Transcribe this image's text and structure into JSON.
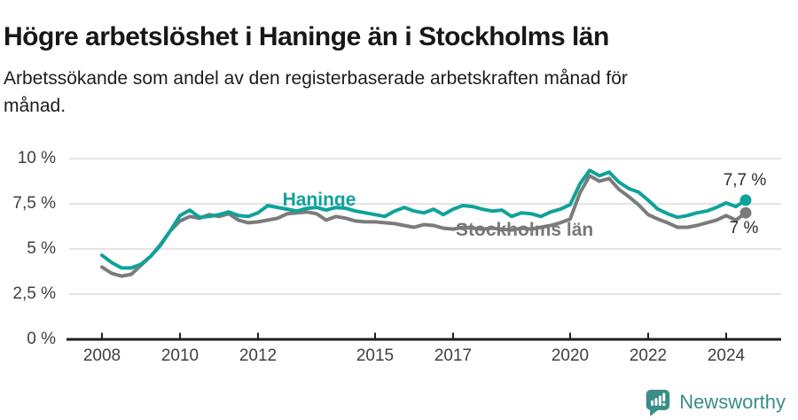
{
  "chart_data": {
    "type": "line",
    "title": "Högre arbetslöshet i Haninge än i Stockholms län",
    "subtitle_lines": [
      "Arbetssökande som andel av den registerbaserade arbetskraften månad för",
      "månad."
    ],
    "unit": "%",
    "x_start": 2008,
    "x_step": 0.25,
    "x_end": 2024.5,
    "ylim": [
      0,
      10
    ],
    "grid": true,
    "legend_position": "inline",
    "y_ticks": [
      {
        "label": "0 %",
        "value": 0
      },
      {
        "label": "2,5 %",
        "value": 2.5
      },
      {
        "label": "5 %",
        "value": 5
      },
      {
        "label": "7,5 %",
        "value": 7.5
      },
      {
        "label": "10 %",
        "value": 10
      }
    ],
    "x_ticks": [
      {
        "label": "2008",
        "year": 2008
      },
      {
        "label": "2010",
        "year": 2010
      },
      {
        "label": "2012",
        "year": 2012
      },
      {
        "label": "2015",
        "year": 2015
      },
      {
        "label": "2017",
        "year": 2017
      },
      {
        "label": "2020",
        "year": 2020
      },
      {
        "label": "2022",
        "year": 2022
      },
      {
        "label": "2024",
        "year": 2024
      }
    ],
    "series": [
      {
        "name": "Haninge",
        "color": "#10a29a",
        "end_label": "7,7 %",
        "end_value": 7.7,
        "values": [
          4.65,
          4.25,
          3.95,
          3.95,
          4.15,
          4.6,
          5.2,
          6.0,
          6.85,
          7.15,
          6.75,
          6.8,
          6.9,
          7.05,
          6.85,
          6.8,
          7.0,
          7.4,
          7.3,
          7.2,
          7.1,
          7.25,
          7.3,
          7.15,
          7.3,
          7.25,
          7.1,
          7.0,
          6.9,
          6.8,
          7.1,
          7.3,
          7.1,
          7.0,
          7.2,
          6.9,
          7.2,
          7.4,
          7.35,
          7.2,
          7.1,
          7.15,
          6.8,
          7.0,
          6.95,
          6.8,
          7.05,
          7.2,
          7.45,
          8.6,
          9.35,
          9.05,
          9.25,
          8.7,
          8.35,
          8.15,
          7.7,
          7.2,
          6.95,
          6.75,
          6.85,
          7.0,
          7.1,
          7.3,
          7.55,
          7.35,
          7.7
        ]
      },
      {
        "name": "Stockholms län",
        "color": "#7b7b7b",
        "end_label": "7 %",
        "end_value": 7.0,
        "values": [
          4.0,
          3.65,
          3.5,
          3.6,
          4.1,
          4.6,
          5.25,
          6.0,
          6.55,
          6.8,
          6.7,
          6.9,
          6.8,
          6.95,
          6.6,
          6.45,
          6.5,
          6.6,
          6.7,
          6.95,
          7.0,
          7.05,
          6.95,
          6.6,
          6.8,
          6.7,
          6.55,
          6.5,
          6.5,
          6.45,
          6.4,
          6.3,
          6.2,
          6.35,
          6.3,
          6.15,
          6.1,
          6.2,
          6.15,
          6.1,
          6.15,
          6.1,
          6.05,
          6.15,
          6.1,
          6.2,
          6.3,
          6.45,
          6.65,
          8.1,
          9.05,
          8.75,
          8.9,
          8.3,
          7.9,
          7.45,
          6.9,
          6.65,
          6.45,
          6.2,
          6.2,
          6.3,
          6.45,
          6.6,
          6.85,
          6.6,
          7.0
        ]
      }
    ],
    "colors": {
      "gridline": "#dcdcdc",
      "axis": "#1f1f1f",
      "tick_text": "#3f3f3f"
    }
  },
  "footer": {
    "brand": "Newsworthy",
    "brand_color": "#3a8d87"
  }
}
